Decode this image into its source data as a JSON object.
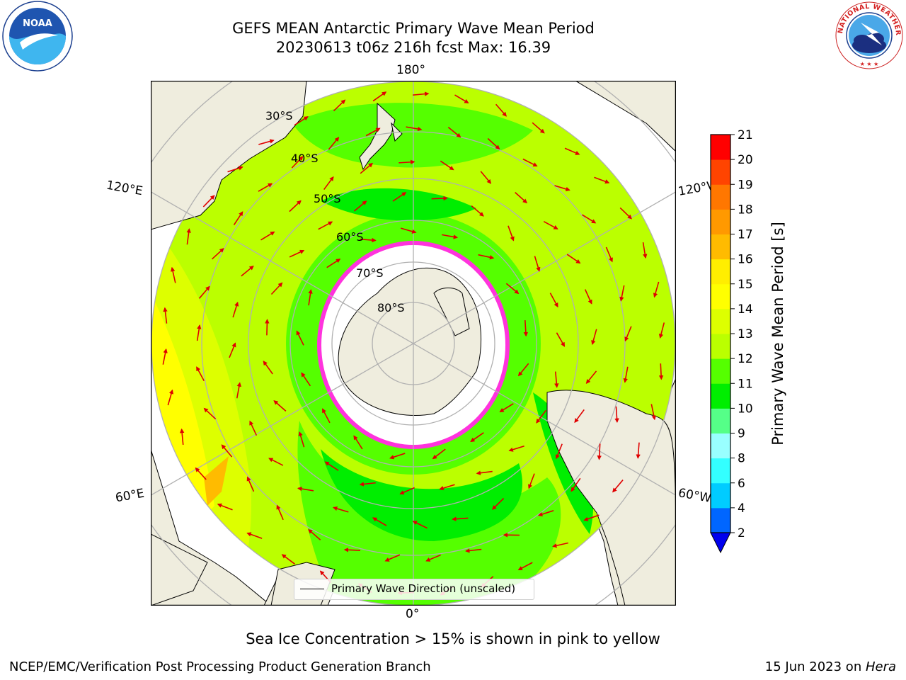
{
  "header": {
    "title_line1": "GEFS MEAN Antarctic Primary Wave Mean Period",
    "title_line2": "20230613 t06z 216h fcst   Max: 16.39"
  },
  "logos": {
    "noaa": {
      "icon": "noaa-logo-icon",
      "text": "NOAA"
    },
    "nws": {
      "icon": "nws-logo-icon",
      "text": "NATIONAL WEATHER SERVICE"
    }
  },
  "map": {
    "lon_labels": {
      "top": "180°",
      "bottom": "0°",
      "left_upper": "120°E",
      "left_lower": "60°E",
      "right_upper": "120°W",
      "right_lower": "60°W"
    },
    "lat_labels": [
      "30°S",
      "40°S",
      "50°S",
      "60°S",
      "70°S",
      "80°S"
    ],
    "legend_text": "Primary Wave Direction (unscaled)"
  },
  "colorbar": {
    "label": "Primary Wave Mean Period [s]",
    "ticks": [
      "2",
      "4",
      "6",
      "8",
      "9",
      "10",
      "11",
      "12",
      "13",
      "14",
      "15",
      "16",
      "17",
      "18",
      "19",
      "20",
      "21"
    ],
    "colors": [
      "#0066ff",
      "#00ccff",
      "#33ffff",
      "#99ffff",
      "#55ff88",
      "#00ee00",
      "#55ff00",
      "#bbff00",
      "#ddff00",
      "#ffff00",
      "#ffee00",
      "#ffbb00",
      "#ff9900",
      "#ff7700",
      "#ff4400",
      "#ff0000"
    ],
    "extend_color": "#0000ee"
  },
  "annotation": "Sea Ice Concentration > 15% is shown in pink to yellow",
  "footer": {
    "left": "NCEP/EMC/Verification Post Processing Product Generation Branch",
    "date": "15 Jun 2023 on ",
    "host": "Hera"
  }
}
